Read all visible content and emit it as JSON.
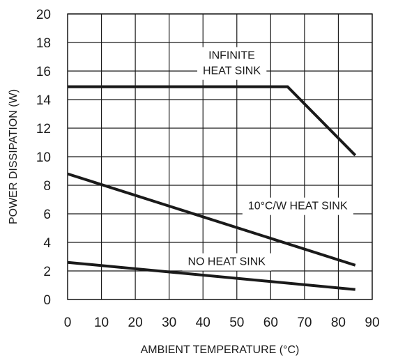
{
  "chart_data": {
    "type": "line",
    "xlabel": "AMBIENT TEMPERATURE (°C)",
    "ylabel": "POWER DISSIPATION (W)",
    "xlim": [
      0,
      90
    ],
    "ylim": [
      0,
      20
    ],
    "x_ticks": [
      0,
      10,
      20,
      30,
      40,
      50,
      60,
      70,
      80,
      90
    ],
    "y_ticks": [
      0,
      2,
      4,
      6,
      8,
      10,
      12,
      14,
      16,
      18,
      20
    ],
    "grid": true,
    "series": [
      {
        "x": [
          0,
          65,
          85
        ],
        "y": [
          14.9,
          14.9,
          10.1
        ]
      },
      {
        "x": [
          0,
          85
        ],
        "y": [
          8.8,
          2.4
        ]
      },
      {
        "x": [
          0,
          85
        ],
        "y": [
          2.6,
          0.7
        ]
      }
    ],
    "annotations": [
      {
        "lines": [
          "INFINITE",
          "HEAT SINK"
        ],
        "x": 48.5,
        "y": 16.6
      },
      {
        "lines": [
          "10°C/W HEAT SINK"
        ],
        "x": 68,
        "y": 6.6
      },
      {
        "lines": [
          "NO HEAT SINK"
        ],
        "x": 47,
        "y": 2.7
      }
    ]
  }
}
